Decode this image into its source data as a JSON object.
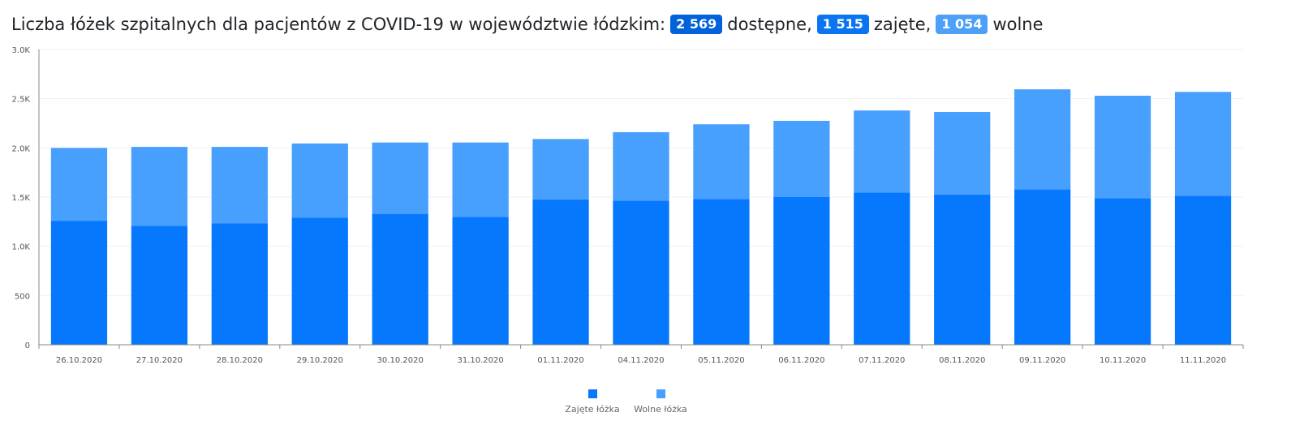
{
  "header": {
    "title_prefix": "Liczba łóżek szpitalnych dla pacjentów z COVID-19 w województwie łódzkim:",
    "available_value": "2 569",
    "available_label": "dostępne,",
    "occupied_value": "1 515",
    "occupied_label": "zajęte,",
    "free_value": "1 054",
    "free_label": "wolne"
  },
  "colors": {
    "occupied": "#0678fe",
    "free": "#479ffe",
    "badge_available": "#0262d9",
    "badge_occupied": "#0a74f2",
    "badge_free": "#4e9ff7"
  },
  "chart_data": {
    "type": "bar",
    "stacked": true,
    "title": "",
    "xlabel": "",
    "ylabel": "",
    "ylim": [
      0,
      3000
    ],
    "yticks": [
      0,
      500,
      1000,
      1500,
      2000,
      2500,
      3000
    ],
    "ytick_labels": [
      "0",
      "500",
      "1.0K",
      "1.5K",
      "2.0K",
      "2.5K",
      "3.0K"
    ],
    "categories": [
      "26.10.2020",
      "27.10.2020",
      "28.10.2020",
      "29.10.2020",
      "30.10.2020",
      "31.10.2020",
      "01.11.2020",
      "04.11.2020",
      "05.11.2020",
      "06.11.2020",
      "07.11.2020",
      "08.11.2020",
      "09.11.2020",
      "10.11.2020",
      "11.11.2020"
    ],
    "series": [
      {
        "name": "Zajęte łóżka",
        "color": "#0678fe",
        "values": [
          1260,
          1210,
          1235,
          1290,
          1330,
          1300,
          1475,
          1465,
          1480,
          1500,
          1545,
          1525,
          1580,
          1490,
          1515
        ]
      },
      {
        "name": "Wolne łóżka",
        "color": "#479ffe",
        "values": [
          740,
          800,
          775,
          755,
          725,
          755,
          615,
          695,
          760,
          775,
          835,
          840,
          1015,
          1040,
          1054
        ]
      }
    ],
    "grid": true,
    "legend_position": "bottom"
  }
}
